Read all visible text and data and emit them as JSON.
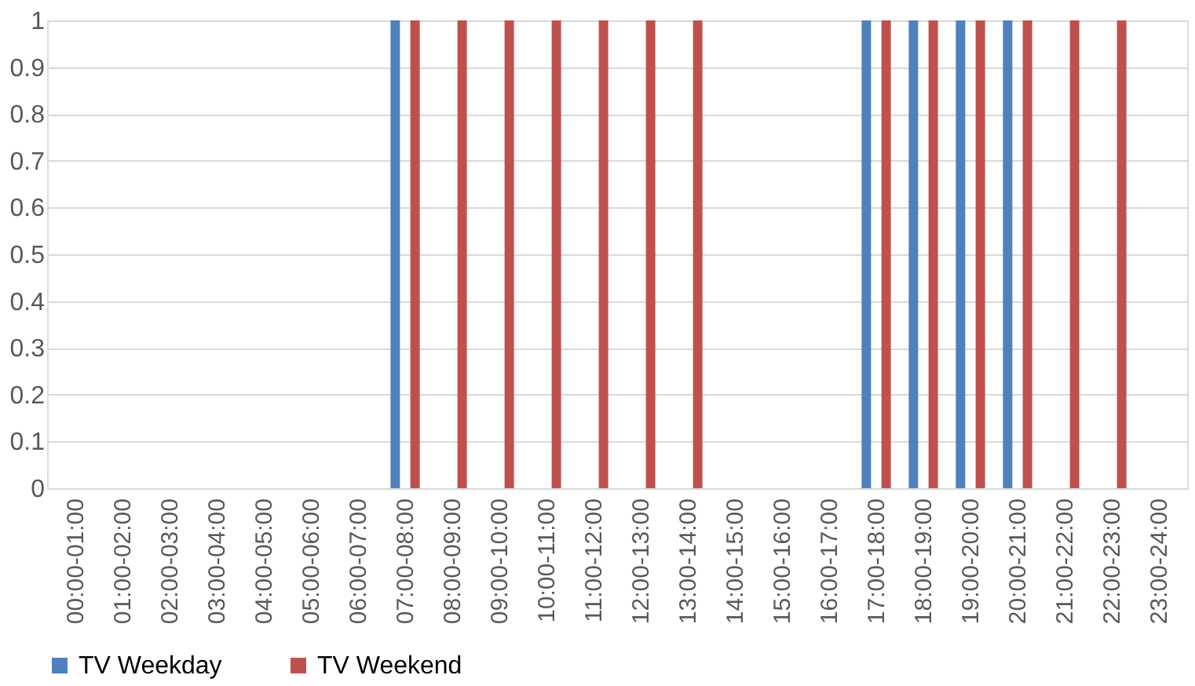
{
  "chart_data": {
    "type": "bar",
    "categories": [
      "00:00-01:00",
      "01:00-02:00",
      "02:00-03:00",
      "03:00-04:00",
      "04:00-05:00",
      "05:00-06:00",
      "06:00-07:00",
      "07:00-08:00",
      "08:00-09:00",
      "09:00-10:00",
      "10:00-11:00",
      "11:00-12:00",
      "12:00-13:00",
      "13:00-14:00",
      "14:00-15:00",
      "15:00-16:00",
      "16:00-17:00",
      "17:00-18:00",
      "18:00-19:00",
      "19:00-20:00",
      "20:00-21:00",
      "21:00-22:00",
      "22:00-23:00",
      "23:00-24:00"
    ],
    "series": [
      {
        "name": "TV Weekday",
        "color": "#4f81bd",
        "values": [
          0,
          0,
          0,
          0,
          0,
          0,
          0,
          1,
          0,
          0,
          0,
          0,
          0,
          0,
          0,
          0,
          0,
          1,
          1,
          1,
          1,
          0,
          0,
          0
        ]
      },
      {
        "name": "TV Weekend",
        "color": "#c0504d",
        "values": [
          0,
          0,
          0,
          0,
          0,
          0,
          0,
          1,
          1,
          1,
          1,
          1,
          1,
          1,
          0,
          0,
          0,
          1,
          1,
          1,
          1,
          1,
          1,
          0
        ]
      }
    ],
    "ylim": [
      0,
      1
    ],
    "yticks": [
      0,
      0.1,
      0.2,
      0.3,
      0.4,
      0.5,
      0.6,
      0.7,
      0.8,
      0.9,
      1
    ],
    "grid": "y",
    "legend": "bottom"
  }
}
